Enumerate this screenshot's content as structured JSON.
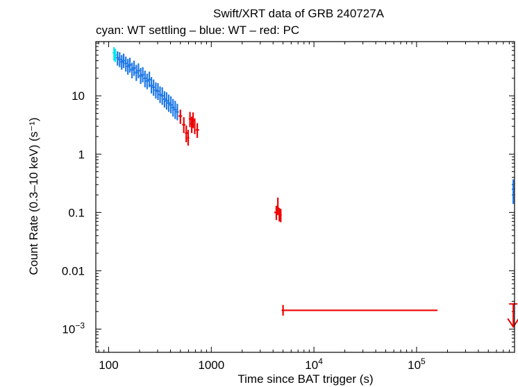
{
  "chart_data": {
    "type": "scatter",
    "title": "Swift/XRT data of GRB 240727A",
    "subtitle": "cyan: WT settling – blue: WT – red: PC",
    "xlabel": "Time since BAT trigger (s)",
    "ylabel": "Count Rate (0.3–10 keV) (s⁻¹)",
    "xscale": "log",
    "yscale": "log",
    "xlim": [
      75,
      900000
    ],
    "ylim": [
      0.0004,
      85
    ],
    "grid": false,
    "x_ticks": [
      {
        "value": 100,
        "label": "100"
      },
      {
        "value": 1000,
        "label": "1000"
      },
      {
        "value": 10000,
        "label": "10",
        "sup": "4"
      },
      {
        "value": 100000,
        "label": "10",
        "sup": "5"
      }
    ],
    "y_ticks": [
      {
        "value": 10,
        "label": "10"
      },
      {
        "value": 1,
        "label": "1"
      },
      {
        "value": 0.1,
        "label": "0.1"
      },
      {
        "value": 0.01,
        "label": "0.01"
      },
      {
        "value": 0.001,
        "label": "10",
        "sup": "−3"
      }
    ],
    "colors": {
      "cyan": "#00e5ee",
      "blue": "#1e78e6",
      "red": "#ee0000"
    },
    "series": [
      {
        "mode": "WT settling",
        "color": "#00e5ee",
        "points": [
          {
            "x": 113,
            "y": 55,
            "ylo": 40,
            "yhi": 68
          },
          {
            "x": 116,
            "y": 50,
            "ylo": 38,
            "yhi": 64
          }
        ]
      },
      {
        "mode": "WT",
        "color": "#1e78e6",
        "points": [
          {
            "x": 122,
            "y": 45,
            "ylo": 33,
            "yhi": 58
          },
          {
            "x": 128,
            "y": 42,
            "ylo": 31,
            "yhi": 56
          },
          {
            "x": 134,
            "y": 38,
            "ylo": 28,
            "yhi": 50
          },
          {
            "x": 140,
            "y": 40,
            "ylo": 30,
            "yhi": 53
          },
          {
            "x": 147,
            "y": 36,
            "ylo": 26,
            "yhi": 47
          },
          {
            "x": 154,
            "y": 32,
            "ylo": 23,
            "yhi": 43
          },
          {
            "x": 161,
            "y": 34,
            "ylo": 25,
            "yhi": 45
          },
          {
            "x": 169,
            "y": 28,
            "ylo": 20,
            "yhi": 37
          },
          {
            "x": 177,
            "y": 30,
            "ylo": 22,
            "yhi": 40
          },
          {
            "x": 186,
            "y": 25,
            "ylo": 18,
            "yhi": 34
          },
          {
            "x": 195,
            "y": 27,
            "ylo": 20,
            "yhi": 36
          },
          {
            "x": 205,
            "y": 22,
            "ylo": 16,
            "yhi": 30
          },
          {
            "x": 215,
            "y": 23,
            "ylo": 17,
            "yhi": 31
          },
          {
            "x": 226,
            "y": 20,
            "ylo": 14,
            "yhi": 27
          },
          {
            "x": 237,
            "y": 18,
            "ylo": 13,
            "yhi": 24
          },
          {
            "x": 249,
            "y": 19,
            "ylo": 14,
            "yhi": 26
          },
          {
            "x": 261,
            "y": 15,
            "ylo": 11,
            "yhi": 21
          },
          {
            "x": 274,
            "y": 14,
            "ylo": 10,
            "yhi": 19
          },
          {
            "x": 288,
            "y": 12.5,
            "ylo": 9,
            "yhi": 17
          },
          {
            "x": 302,
            "y": 12,
            "ylo": 8.5,
            "yhi": 16.5
          },
          {
            "x": 317,
            "y": 10.5,
            "ylo": 7.5,
            "yhi": 14.5
          },
          {
            "x": 333,
            "y": 10,
            "ylo": 7,
            "yhi": 14
          },
          {
            "x": 350,
            "y": 8.8,
            "ylo": 6.3,
            "yhi": 12
          },
          {
            "x": 367,
            "y": 8.2,
            "ylo": 5.8,
            "yhi": 11.5
          },
          {
            "x": 385,
            "y": 7.5,
            "ylo": 5.3,
            "yhi": 10.5
          },
          {
            "x": 404,
            "y": 7,
            "ylo": 5,
            "yhi": 9.8
          },
          {
            "x": 424,
            "y": 6.3,
            "ylo": 4.4,
            "yhi": 8.8
          },
          {
            "x": 445,
            "y": 5.8,
            "ylo": 4,
            "yhi": 8.2
          },
          {
            "x": 467,
            "y": 5.3,
            "ylo": 3.8,
            "yhi": 7.3
          },
          {
            "x": 875000,
            "y": 0.25,
            "ylo": 0.14,
            "yhi": 0.37
          }
        ]
      },
      {
        "mode": "PC",
        "color": "#ee0000",
        "points": [
          {
            "x": 500,
            "y": 4.5,
            "xlo": 480,
            "xhi": 520,
            "ylo": 3.3,
            "yhi": 5.8
          },
          {
            "x": 540,
            "y": 3.2,
            "xlo": 520,
            "xhi": 560,
            "ylo": 2.3,
            "yhi": 4.3
          },
          {
            "x": 570,
            "y": 2.3,
            "xlo": 555,
            "xhi": 590,
            "ylo": 1.6,
            "yhi": 3.1
          },
          {
            "x": 595,
            "y": 1.9,
            "xlo": 580,
            "xhi": 610,
            "ylo": 1.4,
            "yhi": 2.6
          },
          {
            "x": 620,
            "y": 4,
            "xlo": 605,
            "xhi": 640,
            "ylo": 2.9,
            "yhi": 5.3
          },
          {
            "x": 645,
            "y": 3.3,
            "xlo": 630,
            "xhi": 660,
            "ylo": 2.3,
            "yhi": 4.4
          },
          {
            "x": 665,
            "y": 3.8,
            "xlo": 650,
            "xhi": 680,
            "ylo": 2.8,
            "yhi": 5.2
          },
          {
            "x": 690,
            "y": 3,
            "xlo": 680,
            "xhi": 700,
            "ylo": 2.2,
            "yhi": 4.1
          },
          {
            "x": 730,
            "y": 2.6,
            "xlo": 705,
            "xhi": 760,
            "ylo": 1.9,
            "yhi": 3.4
          },
          {
            "x": 4300,
            "y": 0.1,
            "xlo": 4100,
            "xhi": 4450,
            "ylo": 0.074,
            "yhi": 0.13
          },
          {
            "x": 4450,
            "y": 0.12,
            "xlo": 4380,
            "xhi": 4550,
            "ylo": 0.09,
            "yhi": 0.18
          },
          {
            "x": 4600,
            "y": 0.095,
            "xlo": 4520,
            "xhi": 4700,
            "ylo": 0.07,
            "yhi": 0.12
          },
          {
            "x": 4750,
            "y": 0.09,
            "xlo": 4680,
            "xhi": 4850,
            "ylo": 0.068,
            "yhi": 0.115
          },
          {
            "x": 5000,
            "y": 0.0021,
            "xlo": 4850,
            "xhi": 160000,
            "ylo": 0.0017,
            "yhi": 0.0026
          }
        ]
      }
    ],
    "upper_limits": [
      {
        "mode": "PC",
        "color": "#ee0000",
        "x": 875000,
        "y": 0.0027
      }
    ]
  }
}
